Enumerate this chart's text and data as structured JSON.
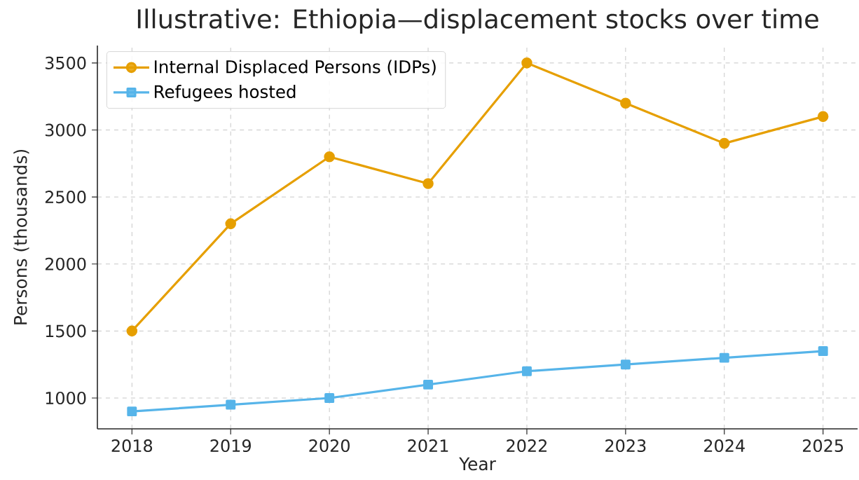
{
  "chart_data": {
    "type": "line",
    "title": "Illustrative: Ethiopia—displacement stocks over time",
    "xlabel": "Year",
    "ylabel": "Persons (thousands)",
    "x": [
      2018,
      2019,
      2020,
      2021,
      2022,
      2023,
      2024,
      2025
    ],
    "series": [
      {
        "name": "Internal Displaced Persons (IDPs)",
        "color": "#e69f00",
        "marker": "circle",
        "values": [
          1500,
          2300,
          2800,
          2600,
          3500,
          3200,
          2900,
          3100
        ]
      },
      {
        "name": "Refugees hosted",
        "color": "#56b4e9",
        "marker": "square",
        "values": [
          900,
          950,
          1000,
          1100,
          1200,
          1250,
          1300,
          1350
        ]
      }
    ],
    "xlim": [
      2017.65,
      2025.35
    ],
    "ylim": [
      770,
      3630
    ],
    "xticks": [
      2018,
      2019,
      2020,
      2021,
      2022,
      2023,
      2024,
      2025
    ],
    "yticks": [
      1000,
      1500,
      2000,
      2500,
      3000,
      3500
    ],
    "grid": true,
    "legend": "top left",
    "line_style": "solid"
  }
}
